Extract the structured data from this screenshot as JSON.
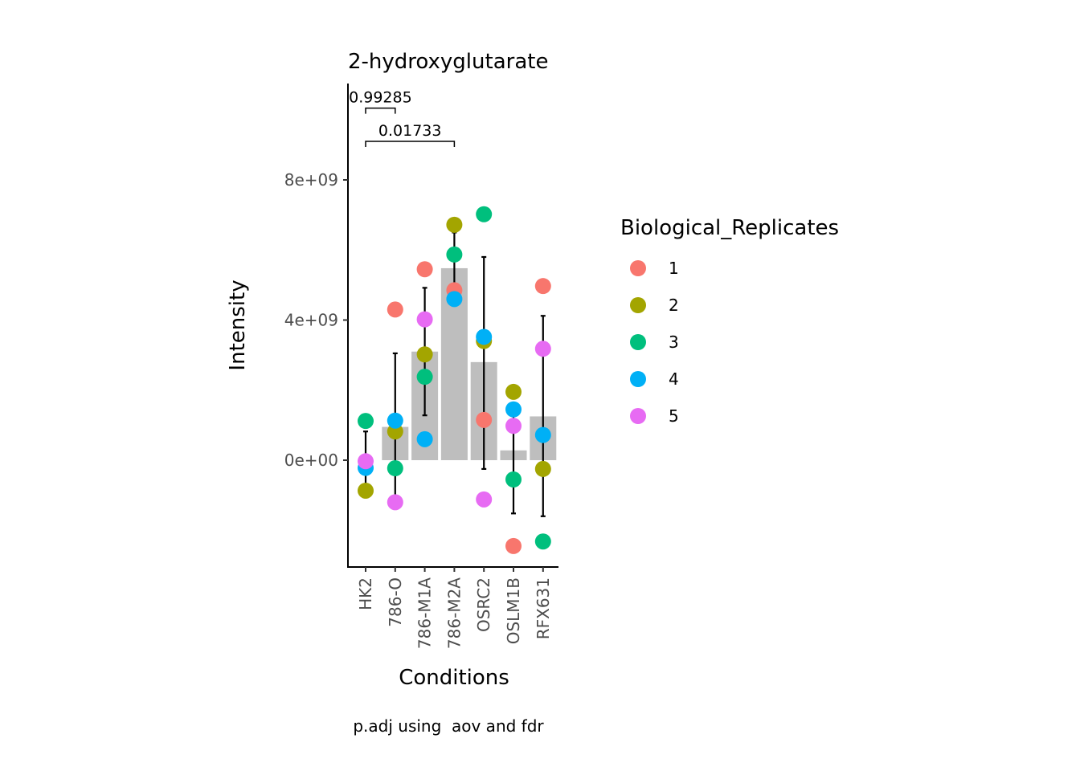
{
  "chart_data": {
    "type": "bar",
    "title": "2-hydroxyglutarate",
    "xlabel": "Conditions",
    "ylabel": "Intensity",
    "caption": "p.adj using  aov and fdr",
    "categories": [
      "HK2",
      "786-O",
      "786-M1A",
      "786-M2A",
      "OSRC2",
      "OSLM1B",
      "RFX631"
    ],
    "bar_values": [
      0.0,
      950000000,
      3100000000,
      5480000000,
      2800000000,
      280000000,
      1250000000
    ],
    "error_low": [
      -880000000,
      -1050000000,
      1280000000,
      4850000000,
      -250000000,
      -1520000000,
      -1600000000
    ],
    "error_high": [
      820000000,
      3050000000,
      4920000000,
      6500000000,
      5800000000,
      1620000000,
      4120000000
    ],
    "yticks": [
      {
        "value": 0,
        "label": "0e+00"
      },
      {
        "value": 4000000000,
        "label": "4e+09"
      },
      {
        "value": 8000000000,
        "label": "8e+09"
      }
    ],
    "ylim": [
      -3050000000,
      10800000000
    ],
    "bar_color": "#bebebe",
    "series": [
      {
        "name": "1",
        "color": "#F8766D",
        "values": [
          null,
          4300000000,
          5450000000,
          4850000000,
          1150000000,
          -2450000000,
          4970000000
        ]
      },
      {
        "name": "2",
        "color": "#A3A500",
        "values": [
          -870000000,
          820000000,
          3020000000,
          6720000000,
          3400000000,
          1950000000,
          -250000000
        ]
      },
      {
        "name": "3",
        "color": "#00BF7D",
        "values": [
          1120000000,
          -230000000,
          2380000000,
          5870000000,
          7020000000,
          -550000000,
          -2320000000
        ]
      },
      {
        "name": "4",
        "color": "#00B0F6",
        "values": [
          -220000000,
          1130000000,
          600000000,
          4600000000,
          3520000000,
          1450000000,
          720000000
        ]
      },
      {
        "name": "5",
        "color": "#E76BF3",
        "values": [
          -30000000,
          -1200000000,
          4020000000,
          null,
          -1120000000,
          980000000,
          3180000000
        ]
      }
    ],
    "comparisons": [
      {
        "from": "HK2",
        "to": "786-O",
        "label": "0.99285",
        "y": 10050000000
      },
      {
        "from": "HK2",
        "to": "786-M2A",
        "label": "0.01733",
        "y": 9100000000
      }
    ],
    "legend": {
      "title": "Biological_Replicates",
      "position": "right",
      "items": [
        "1",
        "2",
        "3",
        "4",
        "5"
      ]
    }
  }
}
